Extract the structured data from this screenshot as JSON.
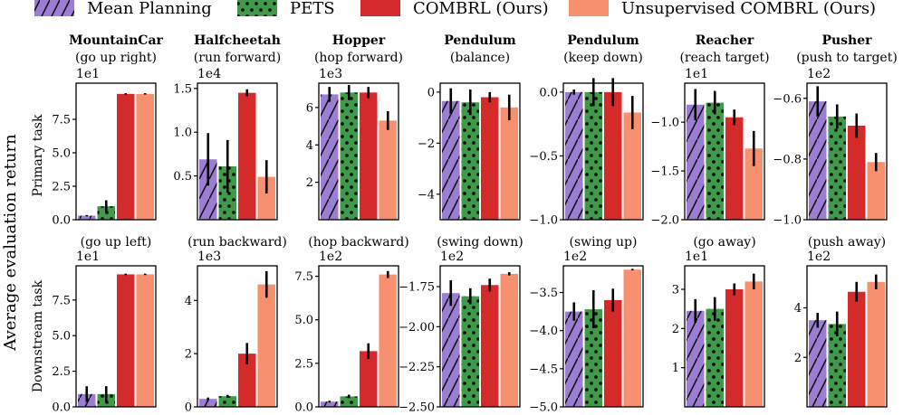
{
  "legend": [
    {
      "label": "Mean Planning",
      "color": "#9b7ed3",
      "pattern": "hatch"
    },
    {
      "label": "PETS",
      "color": "#3f9a4a",
      "pattern": "dots"
    },
    {
      "label": "COMBRL (Ours)",
      "color": "#d42a2a",
      "pattern": "none"
    },
    {
      "label": "Unsupervised COMBRL (Ours)",
      "color": "#f7906f",
      "pattern": "none"
    }
  ],
  "ylabel_main": "Average evaluation return",
  "row_labels": [
    "Primary task",
    "Downstream task"
  ],
  "chart_data": [
    {
      "type": "bar",
      "row": 0,
      "col": 0,
      "env": "MountainCar",
      "task": "(go up right)",
      "multiplier": "1e1",
      "ylim": [
        0,
        10.2
      ],
      "ticks": [
        0,
        2.5,
        5,
        7.5
      ],
      "tick_labels": [
        "0.0",
        "2.5",
        "5.0",
        "7.5"
      ],
      "values": [
        0.3,
        1.0,
        9.4,
        9.4
      ],
      "errors": [
        0.05,
        0.45,
        0.05,
        0.05
      ]
    },
    {
      "type": "bar",
      "row": 0,
      "col": 1,
      "env": "Halfcheetah",
      "task": "(run forward)",
      "multiplier": "1e4",
      "ylim": [
        0,
        1.56
      ],
      "ticks": [
        0.5,
        1.0,
        1.5
      ],
      "tick_labels": [
        "0.5",
        "1.0",
        "1.5"
      ],
      "values": [
        0.69,
        0.61,
        1.45,
        0.49
      ],
      "errors": [
        0.3,
        0.3,
        0.04,
        0.19
      ]
    },
    {
      "type": "bar",
      "row": 0,
      "col": 2,
      "env": "Hopper",
      "task": "(hop forward)",
      "multiplier": "1e3",
      "ylim": [
        0,
        7.3
      ],
      "ticks": [
        2,
        4,
        6
      ],
      "tick_labels": [
        "2",
        "4",
        "6"
      ],
      "values": [
        6.7,
        6.8,
        6.8,
        5.3
      ],
      "errors": [
        0.4,
        0.4,
        0.3,
        0.5
      ]
    },
    {
      "type": "bar",
      "row": 0,
      "col": 3,
      "env": "Pendulum",
      "task": "(balance)",
      "multiplier": "",
      "ylim": [
        -5.0,
        0.35
      ],
      "ticks": [
        -4,
        -2,
        0
      ],
      "tick_labels": [
        "−4",
        "−2",
        "0"
      ],
      "values": [
        -0.35,
        -0.4,
        -0.2,
        -0.6
      ],
      "errors": [
        0.5,
        0.5,
        0.2,
        0.5
      ]
    },
    {
      "type": "bar",
      "row": 0,
      "col": 4,
      "env": "Pendulum",
      "task": "(keep down)",
      "multiplier": "",
      "ylim": [
        -1.0,
        0.07
      ],
      "ticks": [
        -1.0,
        -0.5,
        0.0
      ],
      "tick_labels": [
        "−1.0",
        "−0.5",
        "0.0"
      ],
      "values": [
        0.0,
        0.0,
        0.0,
        -0.16
      ],
      "errors": [
        0.02,
        0.11,
        0.11,
        0.13
      ]
    },
    {
      "type": "bar",
      "row": 0,
      "col": 5,
      "env": "Reacher",
      "task": "(reach target)",
      "multiplier": "1e1",
      "ylim": [
        -2.0,
        -0.6
      ],
      "ticks": [
        -2.0,
        -1.5,
        -1.0
      ],
      "tick_labels": [
        "−2.0",
        "−1.5",
        "−1.0"
      ],
      "values": [
        -0.82,
        -0.8,
        -0.95,
        -1.27
      ],
      "errors": [
        0.16,
        0.12,
        0.08,
        0.18
      ]
    },
    {
      "type": "bar",
      "row": 0,
      "col": 6,
      "env": "Pusher",
      "task": "(push to target)",
      "multiplier": "1e2",
      "ylim": [
        -1.0,
        -0.55
      ],
      "ticks": [
        -1.0,
        -0.8,
        -0.6
      ],
      "tick_labels": [
        "−1.0",
        "−0.8",
        "−0.6"
      ],
      "values": [
        -0.61,
        -0.66,
        -0.69,
        -0.81
      ],
      "errors": [
        0.05,
        0.04,
        0.04,
        0.03
      ]
    },
    {
      "type": "bar",
      "row": 1,
      "col": 0,
      "env": "",
      "task": "(go up left)",
      "multiplier": "1e1",
      "ylim": [
        0,
        9.9
      ],
      "ticks": [
        0,
        2.5,
        5,
        7.5
      ],
      "tick_labels": [
        "0.0",
        "2.5",
        "5.0",
        "7.5"
      ],
      "values": [
        0.9,
        0.9,
        9.3,
        9.3
      ],
      "errors": [
        0.55,
        0.55,
        0.05,
        0.05
      ]
    },
    {
      "type": "bar",
      "row": 1,
      "col": 1,
      "env": "",
      "task": "(run backward)",
      "multiplier": "1e3",
      "ylim": [
        0,
        5.3
      ],
      "ticks": [
        0,
        2,
        4
      ],
      "tick_labels": [
        "0",
        "2",
        "4"
      ],
      "values": [
        0.3,
        0.4,
        2.0,
        4.6
      ],
      "errors": [
        0.05,
        0.05,
        0.4,
        0.5
      ]
    },
    {
      "type": "bar",
      "row": 1,
      "col": 2,
      "env": "",
      "task": "(hop backward)",
      "multiplier": "1e2",
      "ylim": [
        0,
        8.1
      ],
      "ticks": [
        0,
        2.5,
        5.0,
        7.5
      ],
      "tick_labels": [
        "0.0",
        "2.5",
        "5.0",
        "7.5"
      ],
      "values": [
        0.3,
        0.6,
        3.2,
        7.6
      ],
      "errors": [
        0.05,
        0.1,
        0.45,
        0.2
      ]
    },
    {
      "type": "bar",
      "row": 1,
      "col": 3,
      "env": "",
      "task": "(swing down)",
      "multiplier": "1e2",
      "ylim": [
        -2.5,
        -1.62
      ],
      "ticks": [
        -2.5,
        -2.25,
        -2.0,
        -1.75
      ],
      "tick_labels": [
        "−2.50",
        "−2.25",
        "−2.00",
        "−1.75"
      ],
      "values": [
        -1.79,
        -1.81,
        -1.74,
        -1.67
      ],
      "errors": [
        0.08,
        0.05,
        0.04,
        0.01
      ]
    },
    {
      "type": "bar",
      "row": 1,
      "col": 4,
      "env": "",
      "task": "(swing up)",
      "multiplier": "1e2",
      "ylim": [
        -5.0,
        -3.15
      ],
      "ticks": [
        -5.0,
        -4.5,
        -4.0,
        -3.5
      ],
      "tick_labels": [
        "−5.0",
        "−4.5",
        "−4.0",
        "−3.5"
      ],
      "values": [
        -3.75,
        -3.72,
        -3.6,
        -3.2
      ],
      "errors": [
        0.12,
        0.25,
        0.15,
        0.01
      ]
    },
    {
      "type": "bar",
      "row": 1,
      "col": 5,
      "env": "",
      "task": "(go away)",
      "multiplier": "1e1",
      "ylim": [
        0,
        3.6
      ],
      "ticks": [
        1,
        2,
        3
      ],
      "tick_labels": [
        "1",
        "2",
        "3"
      ],
      "values": [
        2.45,
        2.5,
        3.0,
        3.2
      ],
      "errors": [
        0.3,
        0.3,
        0.15,
        0.2
      ]
    },
    {
      "type": "bar",
      "row": 1,
      "col": 6,
      "env": "",
      "task": "(push away)",
      "multiplier": "1e2",
      "ylim": [
        0,
        5.7
      ],
      "ticks": [
        2,
        4
      ],
      "tick_labels": [
        "2",
        "4"
      ],
      "values": [
        3.5,
        3.35,
        4.65,
        5.05
      ],
      "errors": [
        0.3,
        0.5,
        0.4,
        0.3
      ]
    }
  ]
}
